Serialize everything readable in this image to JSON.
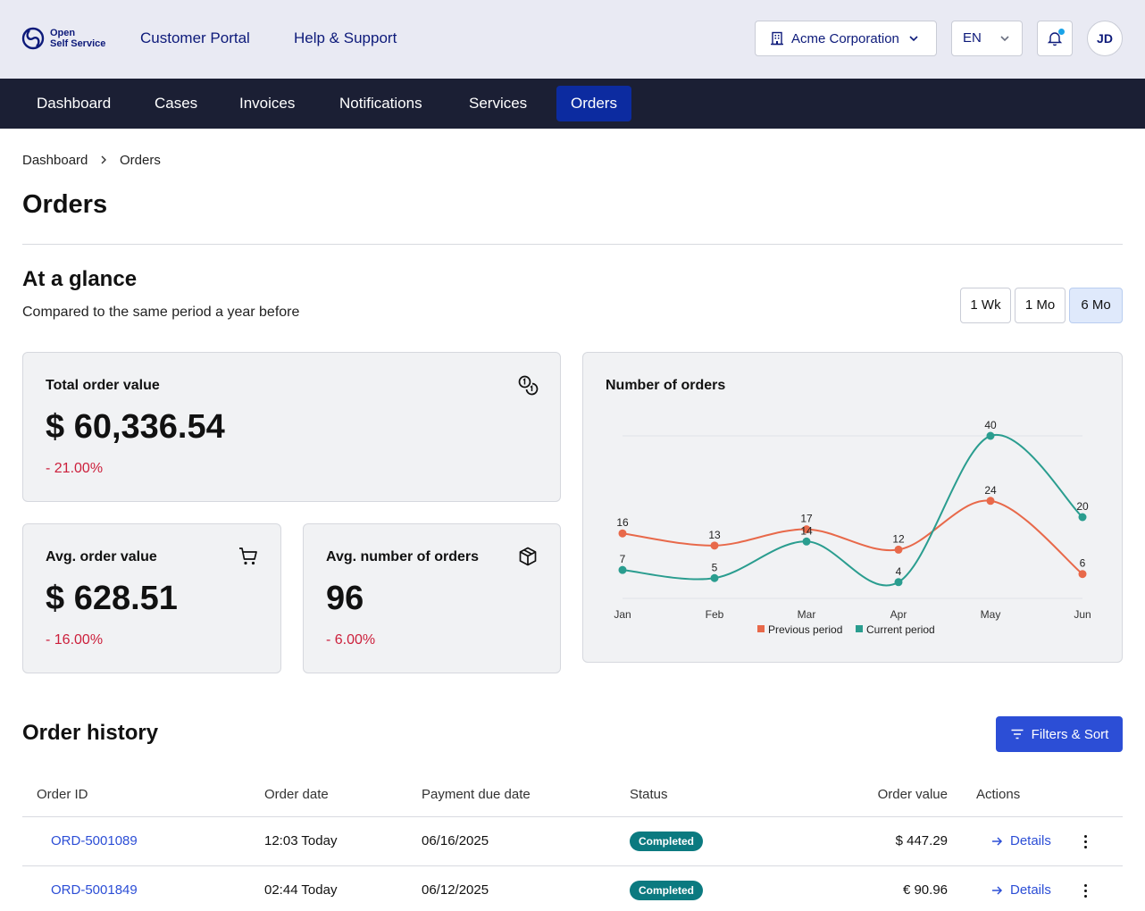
{
  "header": {
    "logo_line1": "Open",
    "logo_line2": "Self Service",
    "links": [
      "Customer Portal",
      "Help & Support"
    ],
    "org": "Acme Corporation",
    "lang": "EN",
    "avatar_initials": "JD",
    "icons": {
      "org": "building-icon",
      "bell": "bell-icon",
      "dropdown": "chevron-down-icon"
    },
    "notification_dot_color": "#1aa3e8"
  },
  "nav": {
    "items": [
      "Dashboard",
      "Cases",
      "Invoices",
      "Notifications",
      "Services",
      "Orders"
    ],
    "active": "Orders"
  },
  "breadcrumb": [
    "Dashboard",
    "Orders"
  ],
  "page": {
    "title": "Orders"
  },
  "glance": {
    "title": "At a glance",
    "subtitle": "Compared to the same period a year before",
    "periods": [
      "1 Wk",
      "1 Mo",
      "6 Mo"
    ],
    "active_period": "6 Mo",
    "cards": {
      "total": {
        "label": "Total order value",
        "value": "$ 60,336.54",
        "delta": "- 21.00%",
        "icon": "coins-icon"
      },
      "avg_value": {
        "label": "Avg. order value",
        "value": "$ 628.51",
        "delta": "- 16.00%",
        "icon": "cart-icon"
      },
      "avg_count": {
        "label": "Avg. number of orders",
        "value": "96",
        "delta": "- 6.00%",
        "icon": "box-icon"
      }
    },
    "delta_color": "#cc1f3b"
  },
  "chart_data": {
    "type": "line",
    "title": "Number of orders",
    "categories": [
      "Jan",
      "Feb",
      "Mar",
      "Apr",
      "May",
      "Jun"
    ],
    "series": [
      {
        "name": "Previous period",
        "values": [
          16,
          13,
          17,
          12,
          24,
          6
        ],
        "color": "#e8694a"
      },
      {
        "name": "Current period",
        "values": [
          7,
          5,
          14,
          4,
          40,
          20
        ],
        "color": "#2a9d8f"
      }
    ],
    "ylim": [
      0,
      40
    ],
    "grid": true,
    "legend": "bottom"
  },
  "history": {
    "title": "Order history",
    "filter_label": "Filters & Sort",
    "filter_icon": "filter-icon",
    "columns": [
      "Order ID",
      "Order date",
      "Payment due date",
      "Status",
      "Order value",
      "Actions"
    ],
    "rows": [
      {
        "id": "ORD-5001089",
        "date": "12:03 Today",
        "due": "06/16/2025",
        "status": "Completed",
        "value": "$ 447.29",
        "action": "Details"
      },
      {
        "id": "ORD-5001849",
        "date": "02:44 Today",
        "due": "06/12/2025",
        "status": "Completed",
        "value": "€ 90.96",
        "action": "Details"
      }
    ],
    "status_color": "#0b7a80"
  }
}
